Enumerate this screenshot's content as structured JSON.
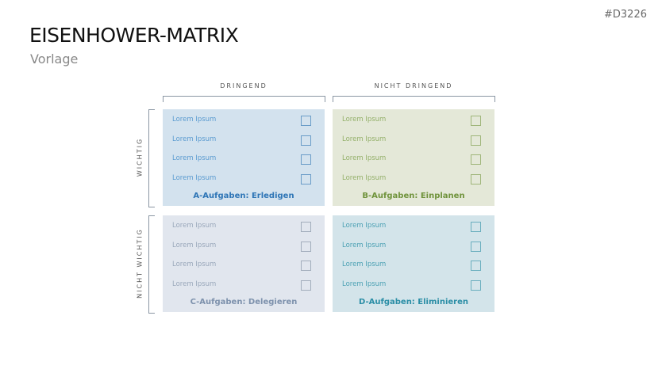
{
  "code": "#D3226",
  "title": "EISENHOWER-MATRIX",
  "subtitle": "Vorlage",
  "columns": [
    "DRINGEND",
    "NICHT DRINGEND"
  ],
  "rows": [
    "WICHTIG",
    "NICHT WICHTIG"
  ],
  "quadrants": [
    {
      "title": "A-Aufgaben: Erledigen",
      "bg": "#d3e2ee",
      "text": "#5b9bd0",
      "titleColor": "#2e75b6",
      "box": "#6a9cc8",
      "items": [
        "Lorem Ipsum",
        "Lorem Ipsum",
        "Lorem Ipsum",
        "Lorem Ipsum"
      ]
    },
    {
      "title": "B-Aufgaben: Einplanen",
      "bg": "#e4e8d8",
      "text": "#94b06a",
      "titleColor": "#70933c",
      "box": "#9fb67a",
      "items": [
        "Lorem Ipsum",
        "Lorem Ipsum",
        "Lorem Ipsum",
        "Lorem Ipsum"
      ]
    },
    {
      "title": "C-Aufgaben: Delegieren",
      "bg": "#e1e6ee",
      "text": "#9aa8bb",
      "titleColor": "#7e92ad",
      "box": "#a2adbc",
      "items": [
        "Lorem Ipsum",
        "Lorem Ipsum",
        "Lorem Ipsum",
        "Lorem Ipsum"
      ]
    },
    {
      "title": "D-Aufgaben: Eliminieren",
      "bg": "#d3e4ea",
      "text": "#4ca1b4",
      "titleColor": "#2b8ea6",
      "box": "#6aaebe",
      "items": [
        "Lorem Ipsum",
        "Lorem Ipsum",
        "Lorem Ipsum",
        "Lorem Ipsum"
      ]
    }
  ]
}
